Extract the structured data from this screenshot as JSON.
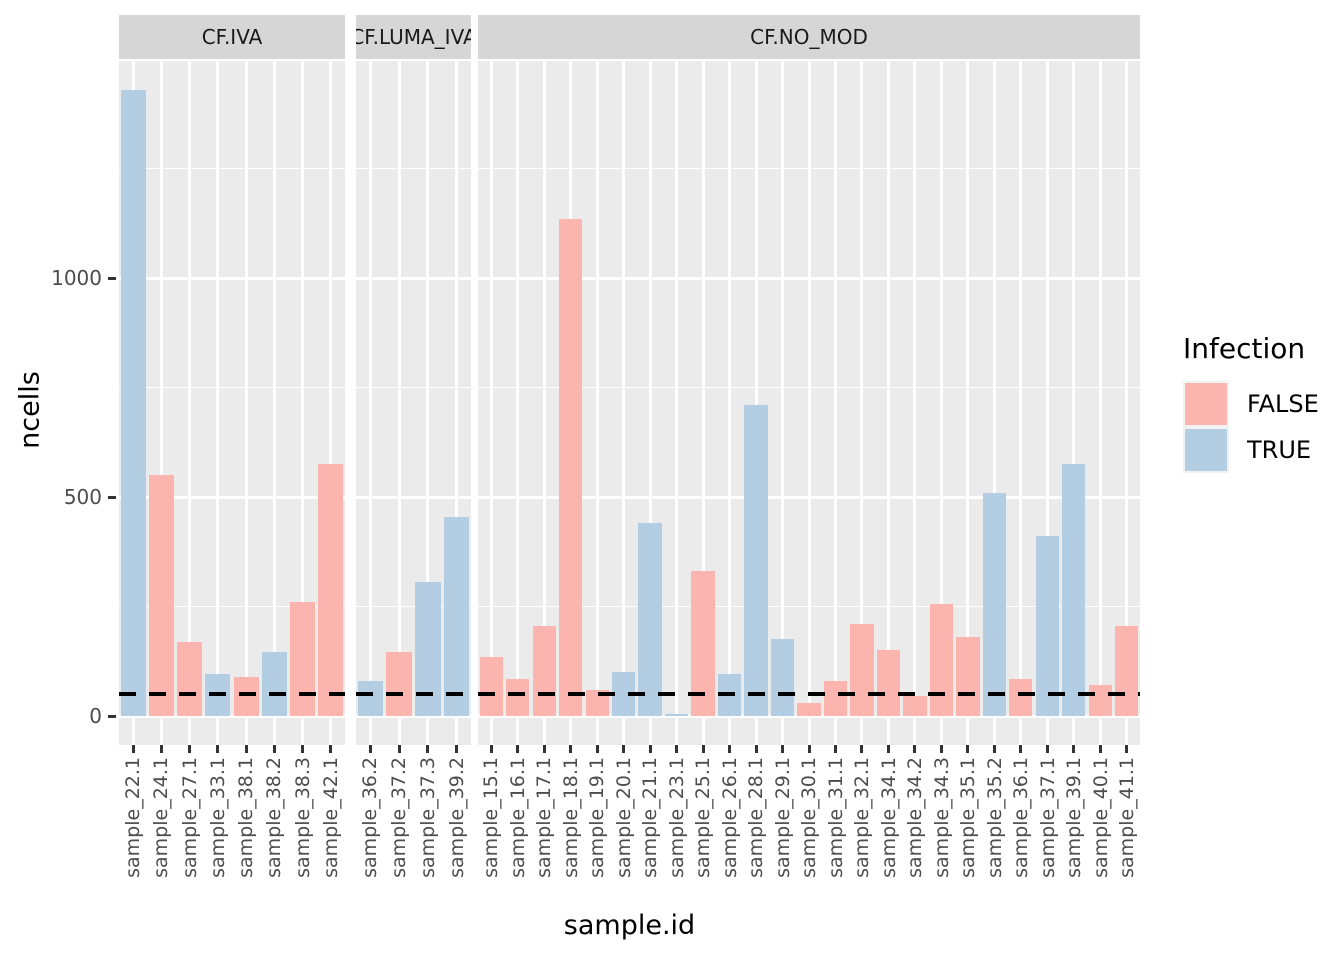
{
  "y_axis": {
    "title": "ncells",
    "ticks": [
      {
        "label": "0",
        "value": 0
      },
      {
        "label": "500",
        "value": 500
      },
      {
        "label": "1000",
        "value": 1000
      }
    ]
  },
  "x_axis": {
    "title": "sample.id"
  },
  "legend": {
    "title": "Infection",
    "entries": [
      {
        "label": "FALSE",
        "color": "#FBB4AE"
      },
      {
        "label": "TRUE",
        "color": "#B3CDE3"
      }
    ]
  },
  "palette": {
    "FALSE": "#FBB4AE",
    "TRUE": "#B3CDE3",
    "panel_bg": "#EBEBEB",
    "strip_bg": "#D6D6D6",
    "gridline": "#FFFFFF",
    "axis_text": "#4D4D4D",
    "reference_line": "#000000"
  },
  "chart_data": {
    "type": "bar",
    "title": "",
    "xlabel": "sample.id",
    "ylabel": "ncells",
    "ylim": [
      0,
      1500
    ],
    "grid": true,
    "legend_position": "right",
    "legend_title": "Infection",
    "hline_dashed_y": 50,
    "facets": [
      {
        "label": "CF.IVA",
        "bars": [
          {
            "sample": "sample_22.1",
            "infection": "TRUE",
            "ncells": 1430
          },
          {
            "sample": "sample_24.1",
            "infection": "FALSE",
            "ncells": 550
          },
          {
            "sample": "sample_27.1",
            "infection": "FALSE",
            "ncells": 170
          },
          {
            "sample": "sample_33.1",
            "infection": "TRUE",
            "ncells": 95
          },
          {
            "sample": "sample_38.1",
            "infection": "FALSE",
            "ncells": 90
          },
          {
            "sample": "sample_38.2",
            "infection": "TRUE",
            "ncells": 145
          },
          {
            "sample": "sample_38.3",
            "infection": "FALSE",
            "ncells": 260
          },
          {
            "sample": "sample_42.1",
            "infection": "FALSE",
            "ncells": 575
          }
        ]
      },
      {
        "label": "CF.LUMA_IVA",
        "bars": [
          {
            "sample": "sample_36.2",
            "infection": "TRUE",
            "ncells": 80
          },
          {
            "sample": "sample_37.2",
            "infection": "FALSE",
            "ncells": 145
          },
          {
            "sample": "sample_37.3",
            "infection": "TRUE",
            "ncells": 305
          },
          {
            "sample": "sample_39.2",
            "infection": "TRUE",
            "ncells": 455
          }
        ]
      },
      {
        "label": "CF.NO_MOD",
        "bars": [
          {
            "sample": "sample_15.1",
            "infection": "FALSE",
            "ncells": 135
          },
          {
            "sample": "sample_16.1",
            "infection": "FALSE",
            "ncells": 85
          },
          {
            "sample": "sample_17.1",
            "infection": "FALSE",
            "ncells": 205
          },
          {
            "sample": "sample_18.1",
            "infection": "FALSE",
            "ncells": 1135
          },
          {
            "sample": "sample_19.1",
            "infection": "FALSE",
            "ncells": 60
          },
          {
            "sample": "sample_20.1",
            "infection": "TRUE",
            "ncells": 100
          },
          {
            "sample": "sample_21.1",
            "infection": "TRUE",
            "ncells": 440
          },
          {
            "sample": "sample_23.1",
            "infection": "TRUE",
            "ncells": 5
          },
          {
            "sample": "sample_25.1",
            "infection": "FALSE",
            "ncells": 330
          },
          {
            "sample": "sample_26.1",
            "infection": "TRUE",
            "ncells": 95
          },
          {
            "sample": "sample_28.1",
            "infection": "TRUE",
            "ncells": 710
          },
          {
            "sample": "sample_29.1",
            "infection": "TRUE",
            "ncells": 175
          },
          {
            "sample": "sample_30.1",
            "infection": "FALSE",
            "ncells": 30
          },
          {
            "sample": "sample_31.1",
            "infection": "FALSE",
            "ncells": 80
          },
          {
            "sample": "sample_32.1",
            "infection": "FALSE",
            "ncells": 210
          },
          {
            "sample": "sample_34.1",
            "infection": "FALSE",
            "ncells": 150
          },
          {
            "sample": "sample_34.2",
            "infection": "FALSE",
            "ncells": 45
          },
          {
            "sample": "sample_34.3",
            "infection": "FALSE",
            "ncells": 255
          },
          {
            "sample": "sample_35.1",
            "infection": "FALSE",
            "ncells": 180
          },
          {
            "sample": "sample_35.2",
            "infection": "TRUE",
            "ncells": 510
          },
          {
            "sample": "sample_36.1",
            "infection": "FALSE",
            "ncells": 85
          },
          {
            "sample": "sample_37.1",
            "infection": "TRUE",
            "ncells": 410
          },
          {
            "sample": "sample_39.1",
            "infection": "TRUE",
            "ncells": 575
          },
          {
            "sample": "sample_40.1",
            "infection": "FALSE",
            "ncells": 70
          },
          {
            "sample": "sample_41.1",
            "infection": "FALSE",
            "ncells": 205
          }
        ]
      }
    ]
  }
}
